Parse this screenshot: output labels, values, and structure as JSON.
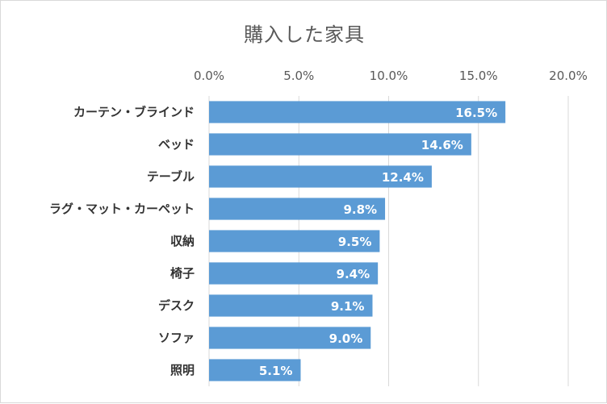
{
  "chart_data": {
    "type": "bar",
    "orientation": "horizontal",
    "title": "購入した家具",
    "categories": [
      "カーテン・ブラインド",
      "ベッド",
      "テーブル",
      "ラグ・マット・カーペット",
      "収納",
      "椅子",
      "デスク",
      "ソファ",
      "照明"
    ],
    "values": [
      16.5,
      14.6,
      12.4,
      9.8,
      9.5,
      9.4,
      9.1,
      9.0,
      5.1
    ],
    "data_labels": [
      "16.5%",
      "14.6%",
      "12.4%",
      "9.8%",
      "9.5%",
      "9.4%",
      "9.1%",
      "9.0%",
      "5.1%"
    ],
    "xlim": [
      0,
      20
    ],
    "x_ticks": [
      0,
      5,
      10,
      15,
      20
    ],
    "x_tick_labels": [
      "0.0%",
      "5.0%",
      "10.0%",
      "15.0%",
      "20.0%"
    ],
    "xaxis_position": "top",
    "grid": true,
    "xlabel": "",
    "ylabel": "",
    "bar_color": "#5b9bd5",
    "grid_color": "#d9d9d9"
  }
}
